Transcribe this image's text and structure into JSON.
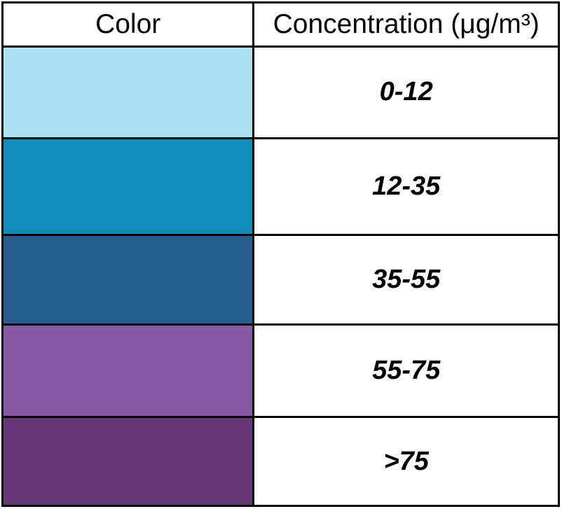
{
  "chart_data": {
    "type": "table",
    "headers": {
      "color": "Color",
      "concentration": "Concentration (μg/m³)"
    },
    "rows": [
      {
        "color": "#ade3f2",
        "range": "0-12"
      },
      {
        "color": "#128dbb",
        "range": "12-35"
      },
      {
        "color": "#285e8f",
        "range": "35-55"
      },
      {
        "color": "#845aa2",
        "range": "55-75"
      },
      {
        "color": "#683778",
        "range": ">75"
      }
    ]
  }
}
